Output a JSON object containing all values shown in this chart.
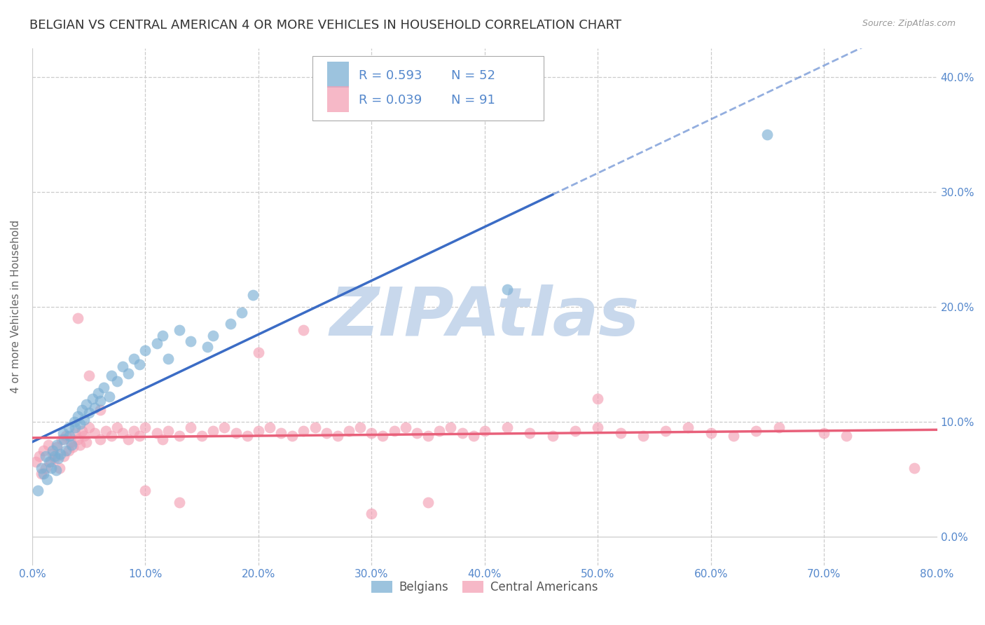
{
  "title": "BELGIAN VS CENTRAL AMERICAN 4 OR MORE VEHICLES IN HOUSEHOLD CORRELATION CHART",
  "source": "Source: ZipAtlas.com",
  "ylabel": "4 or more Vehicles in Household",
  "xmin": 0.0,
  "xmax": 0.8,
  "ymin": -0.025,
  "ymax": 0.425,
  "legend1_label": "Belgians",
  "legend2_label": "Central Americans",
  "r1": 0.593,
  "n1": 52,
  "r2": 0.039,
  "n2": 91,
  "color_blue": "#7BAFD4",
  "color_pink": "#F4A0B5",
  "color_blue_line": "#3B6CC5",
  "color_pink_line": "#E8607A",
  "color_blue_text": "#5588CC",
  "watermark_color": "#C8D8EC",
  "title_fontsize": 13,
  "axis_label_fontsize": 11,
  "tick_fontsize": 11,
  "belgians_x": [
    0.005,
    0.008,
    0.01,
    0.012,
    0.013,
    0.015,
    0.017,
    0.018,
    0.02,
    0.021,
    0.022,
    0.023,
    0.025,
    0.027,
    0.028,
    0.03,
    0.032,
    0.033,
    0.035,
    0.037,
    0.038,
    0.04,
    0.042,
    0.044,
    0.046,
    0.048,
    0.05,
    0.053,
    0.055,
    0.058,
    0.06,
    0.063,
    0.068,
    0.07,
    0.075,
    0.08,
    0.085,
    0.09,
    0.095,
    0.1,
    0.11,
    0.115,
    0.12,
    0.13,
    0.14,
    0.155,
    0.16,
    0.175,
    0.185,
    0.195,
    0.42,
    0.65
  ],
  "belgians_y": [
    0.04,
    0.06,
    0.055,
    0.07,
    0.05,
    0.065,
    0.06,
    0.075,
    0.07,
    0.058,
    0.08,
    0.068,
    0.072,
    0.09,
    0.085,
    0.075,
    0.095,
    0.088,
    0.08,
    0.1,
    0.095,
    0.105,
    0.098,
    0.11,
    0.102,
    0.115,
    0.108,
    0.12,
    0.112,
    0.125,
    0.118,
    0.13,
    0.122,
    0.14,
    0.135,
    0.148,
    0.142,
    0.155,
    0.15,
    0.162,
    0.168,
    0.175,
    0.155,
    0.18,
    0.17,
    0.165,
    0.175,
    0.185,
    0.195,
    0.21,
    0.215,
    0.35
  ],
  "central_x": [
    0.003,
    0.006,
    0.008,
    0.01,
    0.012,
    0.014,
    0.016,
    0.018,
    0.02,
    0.022,
    0.024,
    0.026,
    0.028,
    0.03,
    0.032,
    0.034,
    0.036,
    0.038,
    0.04,
    0.042,
    0.044,
    0.046,
    0.048,
    0.05,
    0.055,
    0.06,
    0.065,
    0.07,
    0.075,
    0.08,
    0.085,
    0.09,
    0.095,
    0.1,
    0.11,
    0.115,
    0.12,
    0.13,
    0.14,
    0.15,
    0.16,
    0.17,
    0.18,
    0.19,
    0.2,
    0.21,
    0.22,
    0.23,
    0.24,
    0.25,
    0.26,
    0.27,
    0.28,
    0.29,
    0.3,
    0.31,
    0.32,
    0.33,
    0.34,
    0.35,
    0.36,
    0.37,
    0.38,
    0.39,
    0.4,
    0.42,
    0.44,
    0.46,
    0.48,
    0.5,
    0.52,
    0.54,
    0.56,
    0.58,
    0.6,
    0.62,
    0.64,
    0.66,
    0.7,
    0.72,
    0.04,
    0.05,
    0.06,
    0.1,
    0.13,
    0.2,
    0.24,
    0.3,
    0.5,
    0.78,
    0.35
  ],
  "central_y": [
    0.065,
    0.07,
    0.055,
    0.075,
    0.06,
    0.08,
    0.065,
    0.072,
    0.068,
    0.078,
    0.06,
    0.085,
    0.07,
    0.088,
    0.075,
    0.082,
    0.078,
    0.09,
    0.085,
    0.08,
    0.092,
    0.088,
    0.082,
    0.095,
    0.09,
    0.085,
    0.092,
    0.088,
    0.095,
    0.09,
    0.085,
    0.092,
    0.088,
    0.095,
    0.09,
    0.085,
    0.092,
    0.088,
    0.095,
    0.088,
    0.092,
    0.095,
    0.09,
    0.088,
    0.092,
    0.095,
    0.09,
    0.088,
    0.092,
    0.095,
    0.09,
    0.088,
    0.092,
    0.095,
    0.09,
    0.088,
    0.092,
    0.095,
    0.09,
    0.088,
    0.092,
    0.095,
    0.09,
    0.088,
    0.092,
    0.095,
    0.09,
    0.088,
    0.092,
    0.095,
    0.09,
    0.088,
    0.092,
    0.095,
    0.09,
    0.088,
    0.092,
    0.095,
    0.09,
    0.088,
    0.19,
    0.14,
    0.11,
    0.04,
    0.03,
    0.16,
    0.18,
    0.02,
    0.12,
    0.06,
    0.03
  ]
}
